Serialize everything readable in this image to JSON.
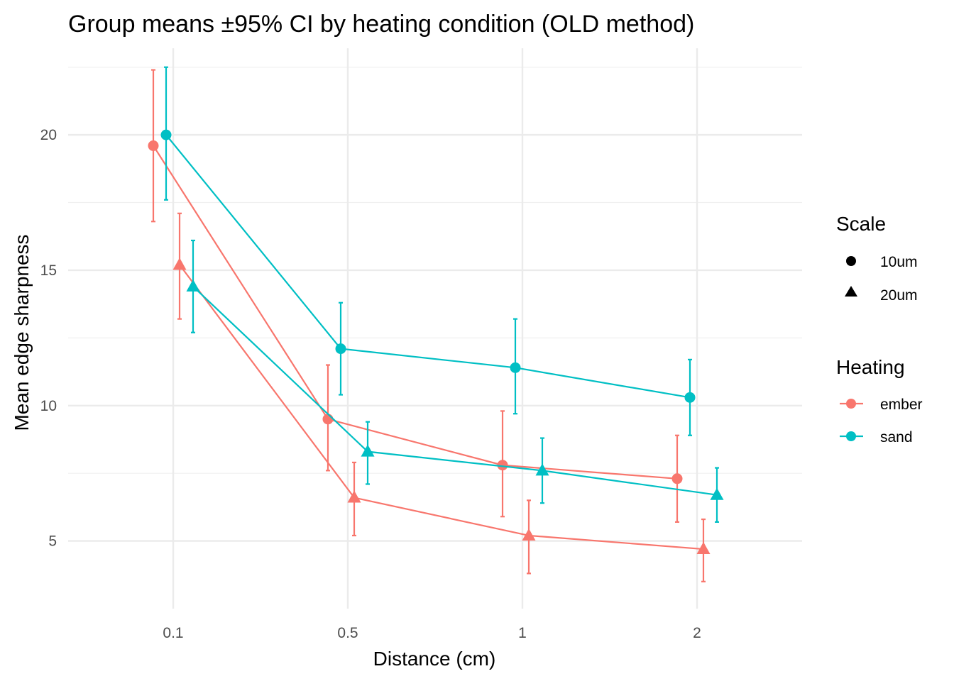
{
  "chart_data": {
    "type": "line",
    "title": "Group means ±95% CI by heating condition (OLD method)",
    "xlabel": "Distance (cm)",
    "ylabel": "Mean edge sharpness",
    "categories": [
      "0.1",
      "0.5",
      "1",
      "2"
    ],
    "y_ticks": [
      5,
      10,
      15,
      20
    ],
    "ylim": [
      2.5,
      23.2
    ],
    "grid": true,
    "legend_placement": "right",
    "legends": {
      "scale": {
        "title": "Scale",
        "items": [
          {
            "label": "10um",
            "shape": "circle"
          },
          {
            "label": "20um",
            "shape": "triangle"
          }
        ]
      },
      "heating": {
        "title": "Heating",
        "items": [
          {
            "label": "ember",
            "color": "#F8766D"
          },
          {
            "label": "sand",
            "color": "#00BFC4"
          }
        ]
      }
    },
    "series": [
      {
        "heating": "ember",
        "scale": "10um",
        "color": "#F8766D",
        "shape": "circle",
        "values": [
          19.6,
          9.5,
          7.8,
          7.3
        ],
        "ci_low": [
          16.8,
          7.6,
          5.9,
          5.7
        ],
        "ci_high": [
          22.4,
          11.5,
          9.8,
          8.9
        ]
      },
      {
        "heating": "sand",
        "scale": "10um",
        "color": "#00BFC4",
        "shape": "circle",
        "values": [
          20.0,
          12.1,
          11.4,
          10.3
        ],
        "ci_low": [
          17.6,
          10.4,
          9.7,
          8.9
        ],
        "ci_high": [
          22.5,
          13.8,
          13.2,
          11.7
        ]
      },
      {
        "heating": "ember",
        "scale": "20um",
        "color": "#F8766D",
        "shape": "triangle",
        "values": [
          15.2,
          6.6,
          5.2,
          4.7
        ],
        "ci_low": [
          13.2,
          5.2,
          3.8,
          3.5
        ],
        "ci_high": [
          17.1,
          7.9,
          6.5,
          5.8
        ]
      },
      {
        "heating": "sand",
        "scale": "20um",
        "color": "#00BFC4",
        "shape": "triangle",
        "values": [
          14.4,
          8.3,
          7.6,
          6.7
        ],
        "ci_low": [
          12.7,
          7.1,
          6.4,
          5.7
        ],
        "ci_high": [
          16.1,
          9.4,
          8.8,
          7.7
        ]
      }
    ]
  }
}
